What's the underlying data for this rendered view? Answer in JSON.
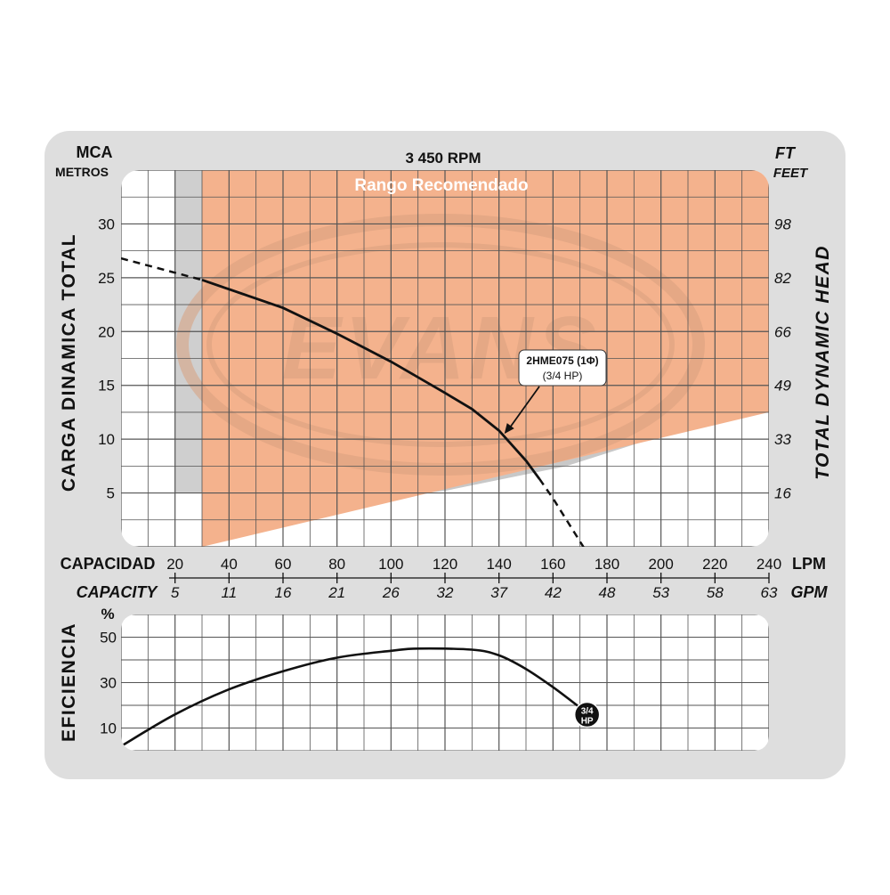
{
  "colors": {
    "panel": "#dedede",
    "grid_bg": "#ffffff",
    "grid_line": "#555555",
    "recommended_fill": "#f4b28d",
    "curve": "#111111",
    "watermark": "#d9a07f",
    "text": "#111111"
  },
  "header": {
    "left_unit": "MCA",
    "left_unit_sub": "METROS",
    "speed": "3 450 RPM",
    "right_unit": "FT",
    "right_unit_sub": "FEET"
  },
  "watermark_brand": "EVANS",
  "chart_data": [
    {
      "type": "line",
      "title": "3 450 RPM",
      "ylabel": "CARGA DINAMICA TOTAL",
      "ylabel_right": "TOTAL DYNAMIC HEAD",
      "xlabel": "CAPACIDAD",
      "xlabel_alt": "CAPACITY",
      "x_unit": "LPM",
      "x_unit_alt": "GPM",
      "xlim": [
        0,
        240
      ],
      "ylim": [
        0,
        35
      ],
      "x_ticks": [
        20,
        40,
        60,
        80,
        100,
        120,
        140,
        160,
        180,
        200,
        220,
        240
      ],
      "x_ticks_alt": [
        "5",
        "11",
        "16",
        "21",
        "26",
        "32",
        "37",
        "42",
        "48",
        "53",
        "58",
        "63"
      ],
      "y_ticks": [
        5,
        10,
        15,
        20,
        25,
        30
      ],
      "y_ticks_right": [
        "16",
        "33",
        "49",
        "66",
        "82",
        "98"
      ],
      "grid": true,
      "recommended_range": {
        "label": "Rango Recomendado",
        "polygon": [
          [
            30,
            0
          ],
          [
            30,
            35
          ],
          [
            240,
            35
          ],
          [
            240,
            12.5
          ],
          [
            30,
            0
          ]
        ]
      },
      "series": [
        {
          "name": "2HME075 (1Φ)",
          "sub": "(3/4 HP)",
          "solid": [
            [
              30,
              24.8
            ],
            [
              60,
              22.2
            ],
            [
              80,
              19.8
            ],
            [
              100,
              17.2
            ],
            [
              120,
              14.3
            ],
            [
              130,
              12.8
            ],
            [
              140,
              10.8
            ],
            [
              150,
              8.0
            ],
            [
              155,
              6.3
            ]
          ],
          "dashed_start": [
            [
              0,
              26.8
            ],
            [
              30,
              24.8
            ]
          ],
          "dashed_end": [
            [
              155,
              6.3
            ],
            [
              160,
              4.5
            ],
            [
              165,
              2.5
            ],
            [
              172,
              -0.3
            ]
          ]
        }
      ],
      "annotation": {
        "label": "2HME075 (1Φ)",
        "sub": "(3/4 HP)",
        "point": [
          142,
          10.5
        ]
      }
    },
    {
      "type": "line",
      "ylabel": "EFICIENCIA",
      "y_unit": "%",
      "xlim": [
        0,
        240
      ],
      "ylim": [
        0,
        60
      ],
      "y_ticks": [
        10,
        30,
        50
      ],
      "grid": true,
      "series": [
        {
          "name": "3/4 HP",
          "values": [
            [
              0,
              2
            ],
            [
              20,
              16
            ],
            [
              40,
              27
            ],
            [
              60,
              35
            ],
            [
              80,
              41
            ],
            [
              100,
              44
            ],
            [
              110,
              45
            ],
            [
              130,
              44.5
            ],
            [
              140,
              42
            ],
            [
              150,
              36
            ],
            [
              160,
              28
            ],
            [
              170,
              19
            ]
          ]
        }
      ],
      "end_badge": "3/4 HP"
    }
  ]
}
